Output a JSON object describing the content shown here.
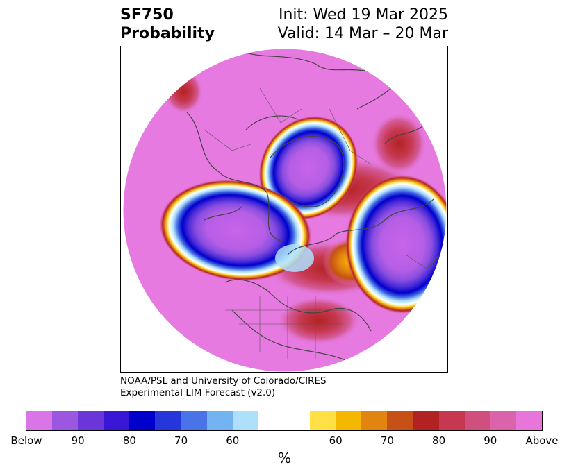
{
  "header": {
    "title_line1": "SF750",
    "title_line2": "Probability",
    "init_text": "Init: Wed 19 Mar 2025",
    "valid_text": "Valid: 14 Mar – 20 Mar"
  },
  "credit": {
    "line1": "NOAA/PSL and University of Colorado/CIRES",
    "line2": "Experimental LIM Forecast (v2.0)"
  },
  "colorbar": {
    "unit": "%",
    "tick_labels": [
      "Below",
      "90",
      "80",
      "70",
      "60",
      "60",
      "70",
      "80",
      "90",
      "Above"
    ],
    "colors": [
      "#d975e6",
      "#9b57e0",
      "#6a35d9",
      "#3a17d6",
      "#0000cc",
      "#2537db",
      "#4b73e8",
      "#74b3f2",
      "#aee0fc",
      "#ffffff",
      "#ffe045",
      "#f5b800",
      "#e28410",
      "#c65015",
      "#b22222",
      "#c73850",
      "#cf4f7f",
      "#db63ac",
      "#e875d9"
    ]
  },
  "map": {
    "projection": "north-polar-stereographic",
    "background_color": "#e67ae0"
  }
}
